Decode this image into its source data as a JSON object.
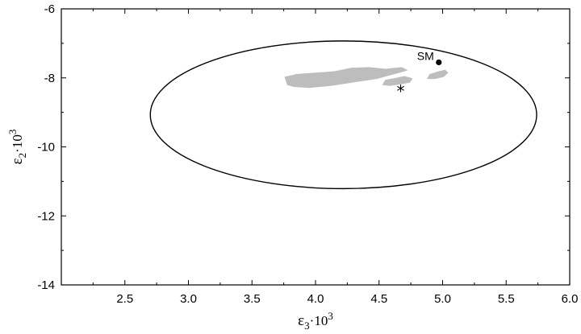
{
  "chart_data": {
    "type": "scatter",
    "title": "",
    "xlabel": {
      "symbol": "ε",
      "subscript": "3",
      "suffix": "·10",
      "superscript": "3"
    },
    "ylabel": {
      "symbol": "ε",
      "subscript": "2",
      "suffix": "·10",
      "superscript": "3"
    },
    "xlim": [
      2.0,
      6.0
    ],
    "ylim": [
      -14,
      -6
    ],
    "xticks": [
      2.5,
      3.0,
      3.5,
      4.0,
      4.5,
      5.0,
      5.5,
      6.0
    ],
    "xtick_labels": [
      "2.5",
      "3.0",
      "3.5",
      "4.0",
      "4.5",
      "5.0",
      "5.5",
      "6.0"
    ],
    "yticks": [
      -6,
      -8,
      -10,
      -12,
      -14
    ],
    "ytick_labels": [
      "-6",
      "-8",
      "-10",
      "-12",
      "-14"
    ],
    "grid": false,
    "ellipse": {
      "center_x": 4.22,
      "center_y": -9.07,
      "radius_x": 1.52,
      "radius_y": 2.14
    },
    "regions": [
      {
        "points": [
          [
            3.78,
            -8.2
          ],
          [
            3.76,
            -7.98
          ],
          [
            3.85,
            -7.9
          ],
          [
            4.0,
            -7.86
          ],
          [
            4.15,
            -7.82
          ],
          [
            4.28,
            -7.72
          ],
          [
            4.42,
            -7.7
          ],
          [
            4.55,
            -7.75
          ],
          [
            4.68,
            -7.7
          ],
          [
            4.72,
            -7.78
          ],
          [
            4.62,
            -7.88
          ],
          [
            4.48,
            -8.02
          ],
          [
            4.3,
            -8.12
          ],
          [
            4.12,
            -8.22
          ],
          [
            3.95,
            -8.28
          ],
          [
            3.83,
            -8.25
          ]
        ]
      },
      {
        "points": [
          [
            4.53,
            -8.2
          ],
          [
            4.55,
            -8.07
          ],
          [
            4.62,
            -8.02
          ],
          [
            4.7,
            -7.96
          ],
          [
            4.76,
            -8.02
          ],
          [
            4.74,
            -8.13
          ],
          [
            4.66,
            -8.18
          ],
          [
            4.58,
            -8.22
          ]
        ]
      },
      {
        "points": [
          [
            4.88,
            -8.02
          ],
          [
            4.9,
            -7.9
          ],
          [
            4.97,
            -7.82
          ],
          [
            5.02,
            -7.78
          ],
          [
            5.04,
            -7.85
          ],
          [
            5.01,
            -7.96
          ],
          [
            4.94,
            -8.02
          ]
        ]
      }
    ],
    "points": [
      {
        "label": "SM",
        "x": 4.97,
        "y": -7.55,
        "marker": "dot"
      },
      {
        "label": "",
        "x": 4.67,
        "y": -8.3,
        "marker": "star"
      }
    ]
  }
}
